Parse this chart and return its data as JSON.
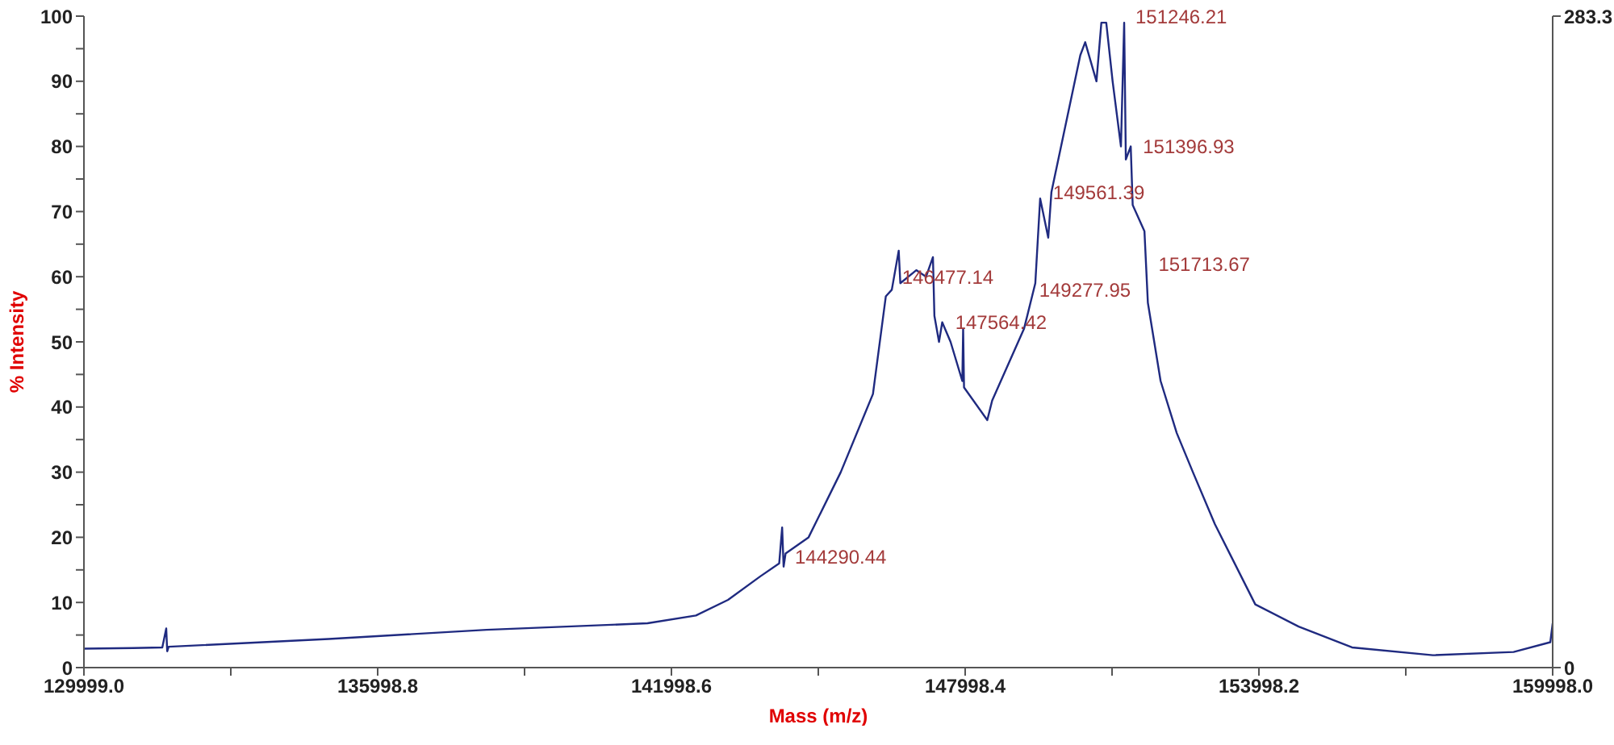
{
  "chart_data": {
    "type": "line",
    "xlabel": "Mass (m/z)",
    "ylabel": "% Intensity",
    "x": [
      129999,
      131000,
      131600,
      131680,
      131700,
      131730,
      135000,
      138222,
      141510,
      142500,
      143155,
      143813,
      144200,
      144260,
      144290,
      144330,
      144800,
      145457,
      146115,
      146378,
      146500,
      146641,
      146674,
      147000,
      147200,
      147340,
      147370,
      147464,
      147530,
      147700,
      147940,
      147957,
      147975,
      148450,
      148550,
      149200,
      149431,
      149530,
      149695,
      149760,
      150350,
      150450,
      150680,
      150780,
      150880,
      151010,
      151180,
      151246,
      151280,
      151380,
      151420,
      151660,
      151730,
      151990,
      152320,
      152650,
      153100,
      153924,
      154810,
      155900,
      157550,
      159200,
      159950,
      159998
    ],
    "series": [
      {
        "color": "#1f2a80",
        "values": [
          2.9,
          3.0,
          3.1,
          6,
          2.5,
          3.2,
          4.4,
          5.8,
          6.8,
          8,
          10.4,
          14,
          16,
          21.5,
          15.5,
          17.5,
          20,
          30,
          42,
          57,
          58,
          64,
          59,
          61,
          60,
          63,
          54,
          50,
          53,
          50,
          44,
          52,
          43,
          38,
          41,
          52,
          59,
          72,
          66,
          73,
          94,
          96,
          90,
          99,
          99,
          90,
          80,
          99,
          78,
          80,
          71,
          67,
          56,
          44,
          36,
          30,
          22,
          9.7,
          6.3,
          3.1,
          1.9,
          2.4,
          3.9,
          6.8
        ]
      }
    ],
    "xlim": [
      129999,
      159998
    ],
    "xticks": [
      {
        "value": 129999,
        "label": "129999.0"
      },
      {
        "value": 132998.9,
        "label": null
      },
      {
        "value": 135998.8,
        "label": "135998.8"
      },
      {
        "value": 138998.7,
        "label": null
      },
      {
        "value": 141998.6,
        "label": "141998.6"
      },
      {
        "value": 144998.5,
        "label": null
      },
      {
        "value": 147998.4,
        "label": "147998.4"
      },
      {
        "value": 150998.3,
        "label": null
      },
      {
        "value": 153998.2,
        "label": "153998.2"
      },
      {
        "value": 156998.1,
        "label": null
      },
      {
        "value": 159998,
        "label": "159998.0"
      }
    ],
    "ylim": [
      0,
      100
    ],
    "yticks": [
      0,
      {
        "value": 5,
        "label": null
      },
      10,
      {
        "value": 15,
        "label": null
      },
      20,
      {
        "value": 25,
        "label": null
      },
      30,
      {
        "value": 35,
        "label": null
      },
      40,
      {
        "value": 45,
        "label": null
      },
      50,
      {
        "value": 55,
        "label": null
      },
      60,
      {
        "value": 65,
        "label": null
      },
      70,
      {
        "value": 75,
        "label": null
      },
      80,
      {
        "value": 85,
        "label": null
      },
      90,
      {
        "value": 95,
        "label": null
      },
      100
    ],
    "y2lim": [
      0,
      283.3
    ],
    "y2ticks": [
      0,
      283.3
    ],
    "annotations": [
      {
        "text": "144290.44",
        "x": 144290,
        "y": 17
      },
      {
        "text": "146477.14",
        "x": 146477,
        "y": 60
      },
      {
        "text": "147564.42",
        "x": 147564,
        "y": 53
      },
      {
        "text": "149277.95",
        "x": 149278,
        "y": 58
      },
      {
        "text": "149561.39",
        "x": 149561,
        "y": 73
      },
      {
        "text": "151246.21",
        "x": 151246,
        "y": 100
      },
      {
        "text": "151396.93",
        "x": 151397,
        "y": 80
      },
      {
        "text": "151713.67",
        "x": 151714,
        "y": 62
      }
    ],
    "marker": "none",
    "line_style": "solid",
    "grid": false,
    "legend": false
  }
}
